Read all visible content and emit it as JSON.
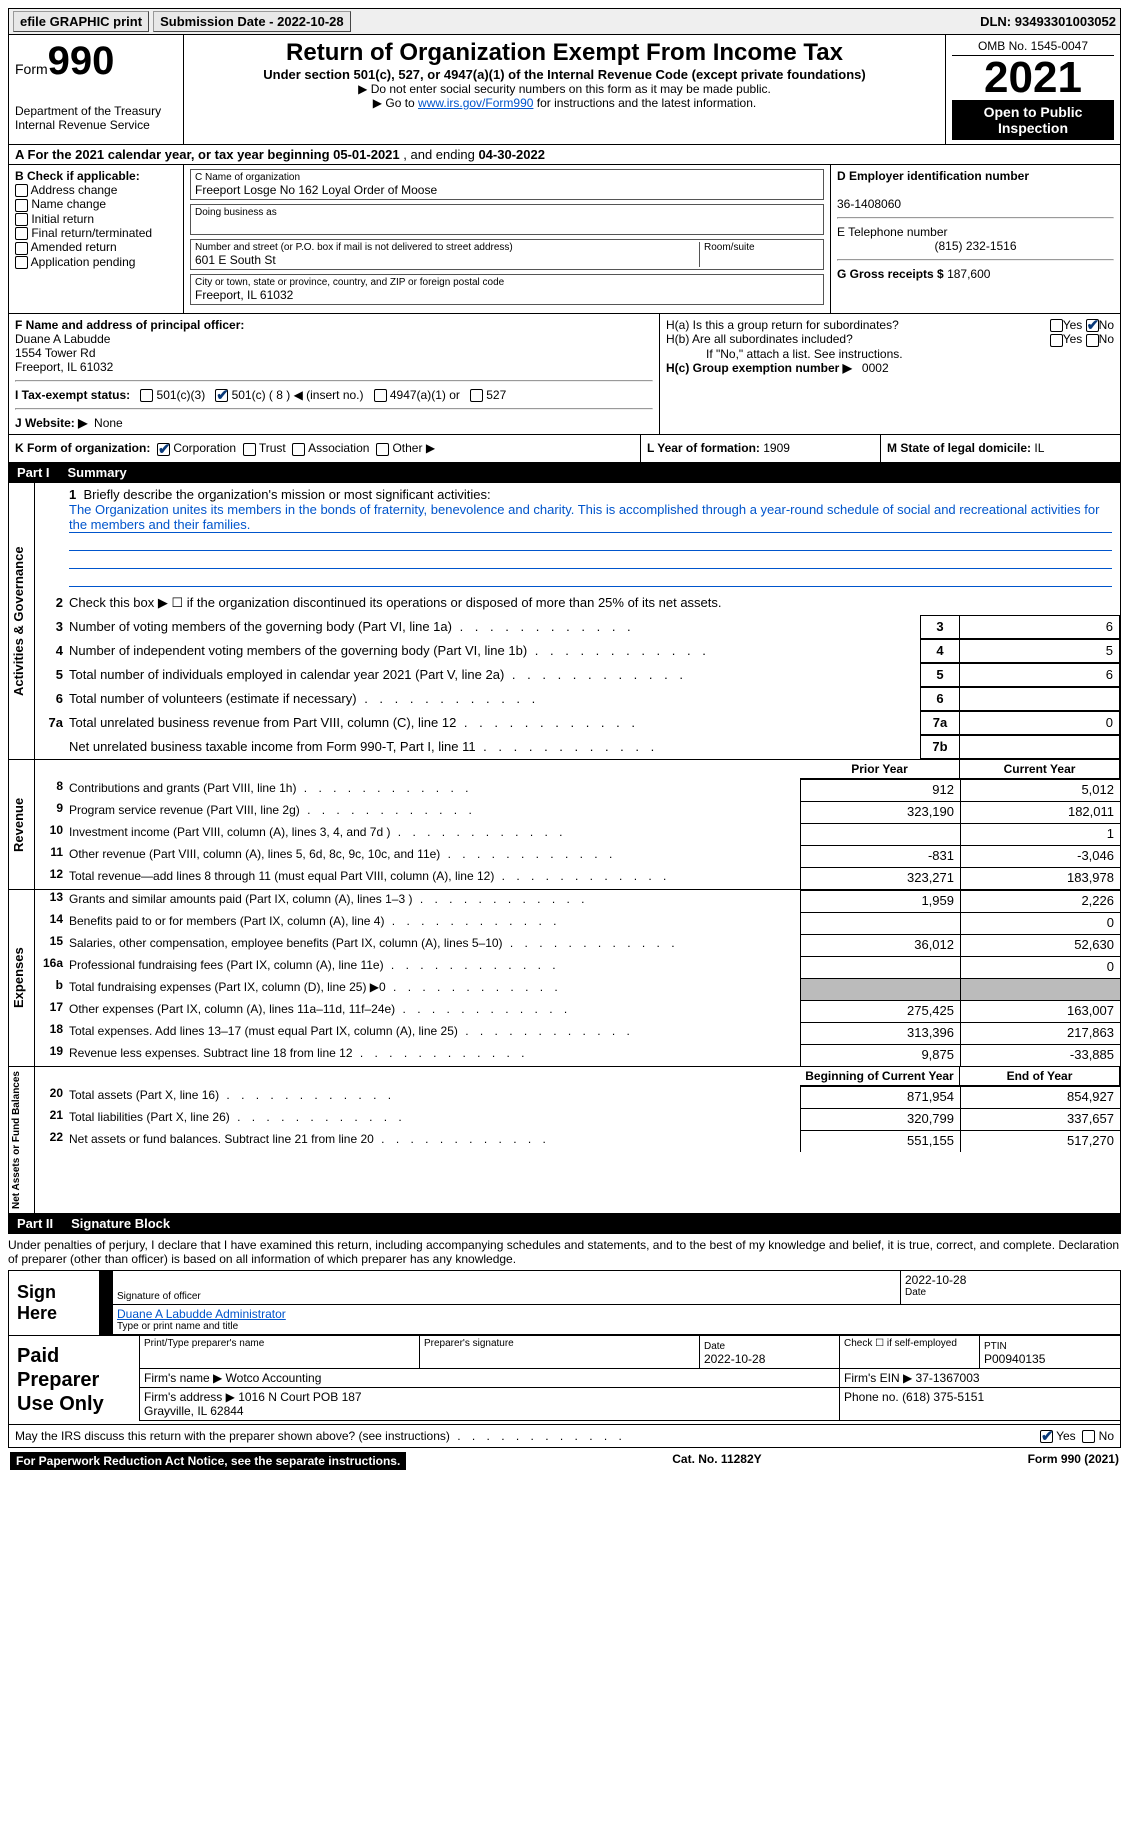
{
  "topbar": {
    "efile": "efile GRAPHIC print",
    "submission_label": "Submission Date - ",
    "submission_date": "2022-10-28",
    "dln_label": "DLN: ",
    "dln": "93493301003052"
  },
  "header": {
    "form_label": "Form",
    "form_number": "990",
    "dept": "Department of the Treasury\nInternal Revenue Service",
    "title": "Return of Organization Exempt From Income Tax",
    "subtitle": "Under section 501(c), 527, or 4947(a)(1) of the Internal Revenue Code (except private foundations)",
    "instr1": "▶ Do not enter social security numbers on this form as it may be made public.",
    "instr2_pre": "▶ Go to ",
    "instr2_link": "www.irs.gov/Form990",
    "instr2_post": " for instructions and the latest information.",
    "omb": "OMB No. 1545-0047",
    "year": "2021",
    "open": "Open to Public Inspection"
  },
  "rowA": {
    "text_pre": "A For the 2021 calendar year, or tax year beginning ",
    "begin": "05-01-2021",
    "mid": "   , and ending ",
    "end": "04-30-2022"
  },
  "sectionB": {
    "b_label": "B Check if applicable:",
    "checks": [
      "Address change",
      "Name change",
      "Initial return",
      "Final return/terminated",
      "Amended return",
      "Application pending"
    ],
    "c_label": "C Name of organization",
    "org_name": "Freeport Losge No 162 Loyal Order of Moose",
    "dba_label": "Doing business as",
    "addr_label": "Number and street (or P.O. box if mail is not delivered to street address)",
    "room_label": "Room/suite",
    "addr": "601 E South St",
    "city_label": "City or town, state or province, country, and ZIP or foreign postal code",
    "city": "Freeport, IL  61032",
    "d_label": "D Employer identification number",
    "ein": "36-1408060",
    "e_label": "E Telephone number",
    "phone": "(815) 232-1516",
    "g_label": "G Gross receipts $ ",
    "gross": "187,600"
  },
  "sectionF": {
    "f_label": "F Name and address of principal officer:",
    "officer_name": "Duane A Labudde",
    "officer_addr1": "1554 Tower Rd",
    "officer_addr2": "Freeport, IL  61032",
    "i_label": "I Tax-exempt status:",
    "i_501c3": "501(c)(3)",
    "i_501c": "501(c) ( 8 ) ◀ (insert no.)",
    "i_4947": "4947(a)(1) or",
    "i_527": "527",
    "j_label": "J Website: ▶",
    "website": "None",
    "ha_label": "H(a)  Is this a group return for subordinates?",
    "hb_label": "H(b)  Are all subordinates included?",
    "hb_note": "If \"No,\" attach a list. See instructions.",
    "hc_label": "H(c)  Group exemption number ▶",
    "hc_val": "0002",
    "yes": "Yes",
    "no": "No"
  },
  "rowK": {
    "k_label": "K Form of organization:",
    "corp": "Corporation",
    "trust": "Trust",
    "assoc": "Association",
    "other": "Other ▶",
    "l_label": "L Year of formation: ",
    "l_val": "1909",
    "m_label": "M State of legal domicile: ",
    "m_val": "IL"
  },
  "part1": {
    "header_part": "Part I",
    "header_title": "Summary",
    "l1_label": "Briefly describe the organization's mission or most significant activities:",
    "l1_text": "The Organization unites its members in the bonds of fraternity, benevolence and charity. This is accomplished through a year-round schedule of social and recreational activities for the members and their families.",
    "l2": "Check this box ▶ ☐ if the organization discontinued its operations or disposed of more than 25% of its net assets.",
    "lines": [
      {
        "n": "3",
        "t": "Number of voting members of the governing body (Part VI, line 1a)",
        "bn": "3",
        "v": "6"
      },
      {
        "n": "4",
        "t": "Number of independent voting members of the governing body (Part VI, line 1b)",
        "bn": "4",
        "v": "5"
      },
      {
        "n": "5",
        "t": "Total number of individuals employed in calendar year 2021 (Part V, line 2a)",
        "bn": "5",
        "v": "6"
      },
      {
        "n": "6",
        "t": "Total number of volunteers (estimate if necessary)",
        "bn": "6",
        "v": ""
      },
      {
        "n": "7a",
        "t": "Total unrelated business revenue from Part VIII, column (C), line 12",
        "bn": "7a",
        "v": "0"
      },
      {
        "n": "",
        "t": "Net unrelated business taxable income from Form 990-T, Part I, line 11",
        "bn": "7b",
        "v": ""
      }
    ],
    "side_label_1": "Activities & Governance"
  },
  "fin": {
    "head_prior": "Prior Year",
    "head_current": "Current Year",
    "head_begin": "Beginning of Current Year",
    "head_end": "End of Year",
    "revenue_label": "Revenue",
    "expenses_label": "Expenses",
    "netassets_label": "Net Assets or Fund Balances",
    "rows_rev": [
      {
        "n": "8",
        "d": "Contributions and grants (Part VIII, line 1h)",
        "py": "912",
        "cy": "5,012"
      },
      {
        "n": "9",
        "d": "Program service revenue (Part VIII, line 2g)",
        "py": "323,190",
        "cy": "182,011"
      },
      {
        "n": "10",
        "d": "Investment income (Part VIII, column (A), lines 3, 4, and 7d )",
        "py": "",
        "cy": "1"
      },
      {
        "n": "11",
        "d": "Other revenue (Part VIII, column (A), lines 5, 6d, 8c, 9c, 10c, and 11e)",
        "py": "-831",
        "cy": "-3,046"
      },
      {
        "n": "12",
        "d": "Total revenue—add lines 8 through 11 (must equal Part VIII, column (A), line 12)",
        "py": "323,271",
        "cy": "183,978"
      }
    ],
    "rows_exp": [
      {
        "n": "13",
        "d": "Grants and similar amounts paid (Part IX, column (A), lines 1–3 )",
        "py": "1,959",
        "cy": "2,226"
      },
      {
        "n": "14",
        "d": "Benefits paid to or for members (Part IX, column (A), line 4)",
        "py": "",
        "cy": "0"
      },
      {
        "n": "15",
        "d": "Salaries, other compensation, employee benefits (Part IX, column (A), lines 5–10)",
        "py": "36,012",
        "cy": "52,630"
      },
      {
        "n": "16a",
        "d": "Professional fundraising fees (Part IX, column (A), line 11e)",
        "py": "",
        "cy": "0"
      },
      {
        "n": "b",
        "d": "Total fundraising expenses (Part IX, column (D), line 25) ▶0",
        "py": "SHADE",
        "cy": "SHADE"
      },
      {
        "n": "17",
        "d": "Other expenses (Part IX, column (A), lines 11a–11d, 11f–24e)",
        "py": "275,425",
        "cy": "163,007"
      },
      {
        "n": "18",
        "d": "Total expenses. Add lines 13–17 (must equal Part IX, column (A), line 25)",
        "py": "313,396",
        "cy": "217,863"
      },
      {
        "n": "19",
        "d": "Revenue less expenses. Subtract line 18 from line 12",
        "py": "9,875",
        "cy": "-33,885"
      }
    ],
    "rows_net": [
      {
        "n": "20",
        "d": "Total assets (Part X, line 16)",
        "py": "871,954",
        "cy": "854,927"
      },
      {
        "n": "21",
        "d": "Total liabilities (Part X, line 26)",
        "py": "320,799",
        "cy": "337,657"
      },
      {
        "n": "22",
        "d": "Net assets or fund balances. Subtract line 21 from line 20",
        "py": "551,155",
        "cy": "517,270"
      }
    ]
  },
  "part2": {
    "header_part": "Part II",
    "header_title": "Signature Block",
    "perjury": "Under penalties of perjury, I declare that I have examined this return, including accompanying schedules and statements, and to the best of my knowledge and belief, it is true, correct, and complete. Declaration of preparer (other than officer) is based on all information of which preparer has any knowledge."
  },
  "sign": {
    "label": "Sign Here",
    "sig_of_officer": "Signature of officer",
    "date": "2022-10-28",
    "date_label": "Date",
    "name_title": "Duane A Labudde  Administrator",
    "type_name": "Type or print name and title"
  },
  "preparer": {
    "label": "Paid Preparer Use Only",
    "print_name_label": "Print/Type preparer's name",
    "sig_label": "Preparer's signature",
    "date_label": "Date",
    "date": "2022-10-28",
    "check_label": "Check ☐ if self-employed",
    "ptin_label": "PTIN",
    "ptin": "P00940135",
    "firm_name_label": "Firm's name    ▶ ",
    "firm_name": "Wotco Accounting",
    "firm_ein_label": "Firm's EIN ▶ ",
    "firm_ein": "37-1367003",
    "firm_addr_label": "Firm's address ▶ ",
    "firm_addr": "1016 N Court POB 187\nGrayville, IL  62844",
    "phone_label": "Phone no. ",
    "phone": "(618) 375-5151"
  },
  "bottom": {
    "discuss": "May the IRS discuss this return with the preparer shown above? (see instructions)",
    "yes": "Yes",
    "no": "No"
  },
  "footer": {
    "paperwork": "For Paperwork Reduction Act Notice, see the separate instructions.",
    "cat": "Cat. No. 11282Y",
    "formref": "Form 990 (2021)"
  }
}
